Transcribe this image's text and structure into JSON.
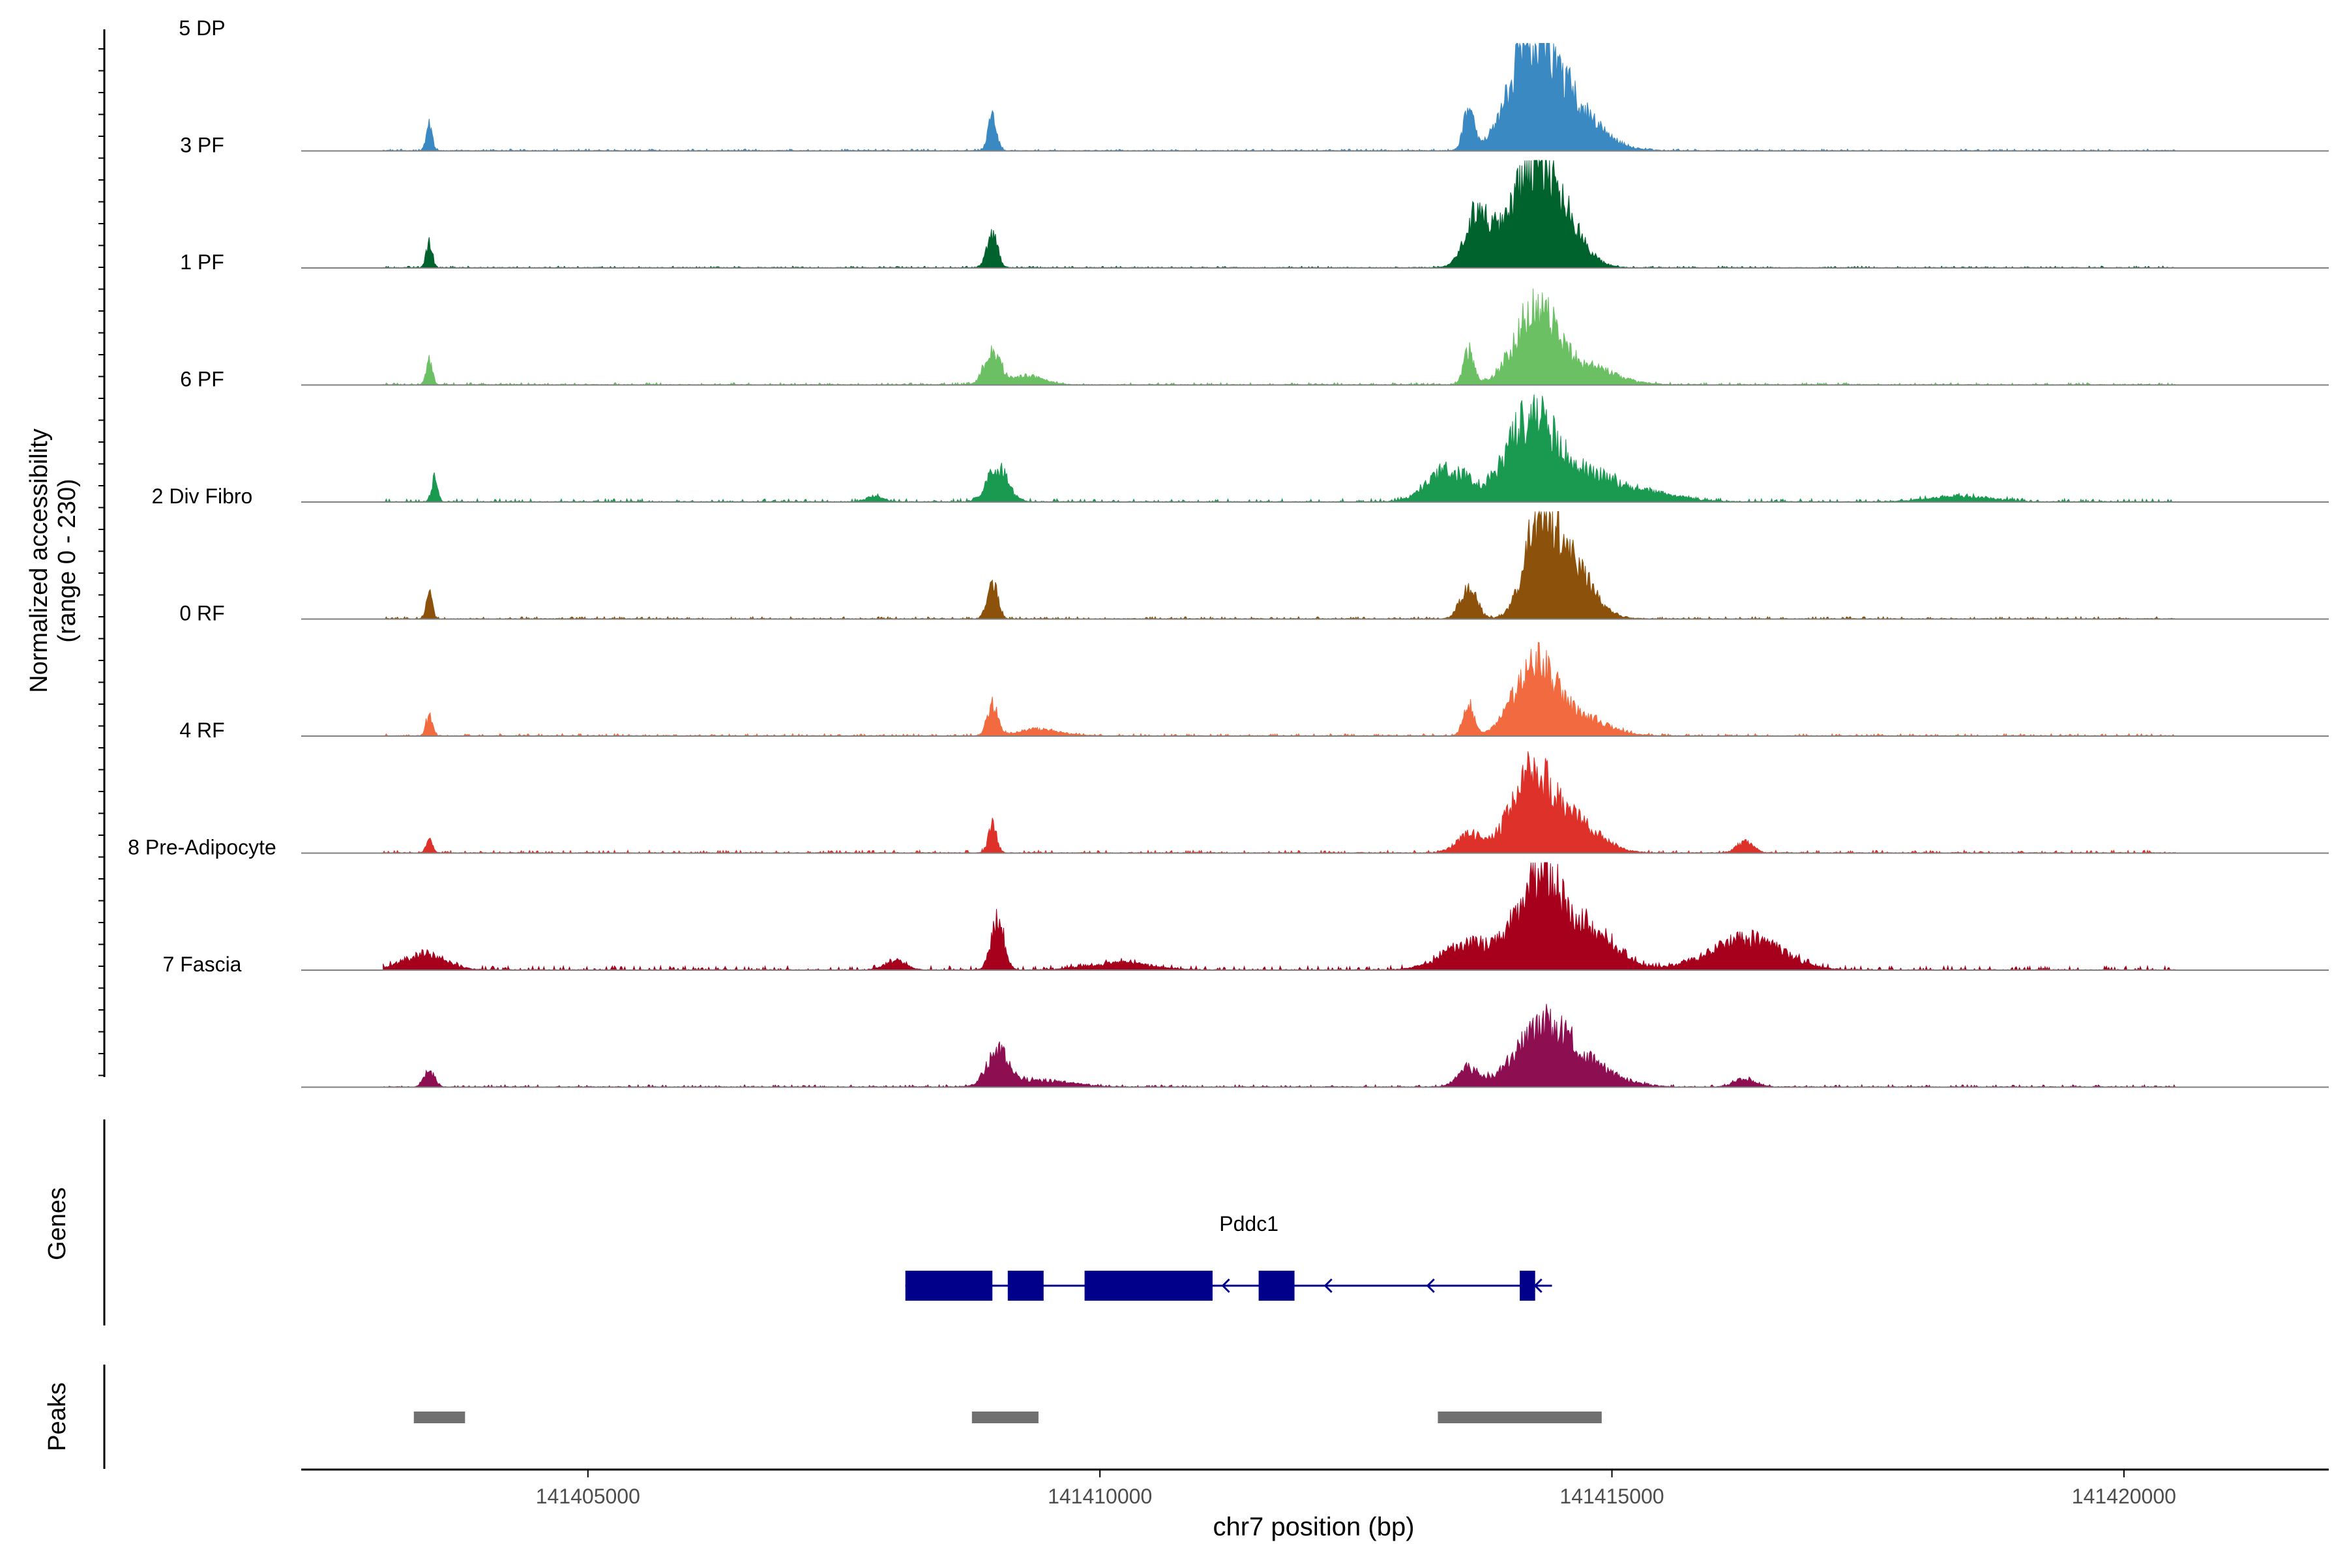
{
  "chart_data": {
    "type": "area",
    "ylabel": "Normalized accessibility",
    "ylabel_range": "(range 0 - 230)",
    "ylim": [
      0,
      230
    ],
    "xlabel": "chr7 position (bp)",
    "xlim": [
      141402200,
      141422000
    ],
    "x_ticks": [
      141405000,
      141410000,
      141415000,
      141420000
    ],
    "x_tick_labels": [
      "141405000",
      "141410000",
      "141415000",
      "141420000"
    ],
    "tracks": [
      {
        "name": "5 DP",
        "color": "#3a89c2",
        "peaks": [
          [
            141403450,
            30,
            55
          ],
          [
            141408950,
            40,
            75
          ],
          [
            141413600,
            50,
            90
          ],
          [
            141414200,
            200,
            190
          ],
          [
            141414500,
            300,
            120
          ]
        ],
        "noise": 4
      },
      {
        "name": "3 PF",
        "color": "#00622d",
        "peaks": [
          [
            141403450,
            30,
            55
          ],
          [
            141408950,
            50,
            80
          ],
          [
            141413700,
            120,
            130
          ],
          [
            141414200,
            200,
            190
          ],
          [
            141414500,
            200,
            100
          ]
        ],
        "noise": 4
      },
      {
        "name": "1 PF",
        "color": "#6ac063",
        "peaks": [
          [
            141403450,
            30,
            55
          ],
          [
            141408950,
            75,
            80
          ],
          [
            141409300,
            150,
            20
          ],
          [
            141413600,
            50,
            80
          ],
          [
            141414250,
            200,
            160
          ],
          [
            141414700,
            300,
            40
          ]
        ],
        "noise": 5
      },
      {
        "name": "6 PF",
        "color": "#1a9951",
        "peaks": [
          [
            141403500,
            30,
            50
          ],
          [
            141407800,
            80,
            12
          ],
          [
            141409000,
            100,
            75
          ],
          [
            141413400,
            200,
            70
          ],
          [
            141414200,
            230,
            170
          ],
          [
            141414700,
            350,
            60
          ],
          [
            141415400,
            300,
            15
          ],
          [
            141418400,
            300,
            12
          ]
        ],
        "noise": 7
      },
      {
        "name": "2 Div Fibro",
        "color": "#8c510a",
        "peaks": [
          [
            141403450,
            30,
            55
          ],
          [
            141408950,
            50,
            80
          ],
          [
            141413600,
            80,
            70
          ],
          [
            141414300,
            150,
            200
          ],
          [
            141414600,
            200,
            120
          ]
        ],
        "noise": 5
      },
      {
        "name": "0 RF",
        "color": "#f26a3f",
        "peaks": [
          [
            141403450,
            30,
            45
          ],
          [
            141408950,
            50,
            70
          ],
          [
            141409400,
            200,
            15
          ],
          [
            141413600,
            50,
            70
          ],
          [
            141414250,
            200,
            160
          ],
          [
            141414700,
            250,
            40
          ]
        ],
        "noise": 5
      },
      {
        "name": "4 RF",
        "color": "#dd3129",
        "peaks": [
          [
            141403450,
            30,
            30
          ],
          [
            141408950,
            40,
            60
          ],
          [
            141413600,
            120,
            40
          ],
          [
            141414200,
            200,
            160
          ],
          [
            141414600,
            250,
            70
          ],
          [
            141416300,
            80,
            25
          ]
        ],
        "noise": 6
      },
      {
        "name": "8 Pre-Adipocyte",
        "color": "#a6001d",
        "peaks": [
          [
            141403400,
            200,
            35
          ],
          [
            141408000,
            100,
            20
          ],
          [
            141409000,
            60,
            120
          ],
          [
            141410200,
            300,
            15
          ],
          [
            141413600,
            250,
            60
          ],
          [
            141414300,
            220,
            200
          ],
          [
            141414800,
            250,
            80
          ],
          [
            141416400,
            300,
            60
          ],
          [
            141416000,
            300,
            20
          ]
        ],
        "noise": 9
      },
      {
        "name": "7 Fascia",
        "color": "#8d0f52",
        "peaks": [
          [
            141403450,
            50,
            35
          ],
          [
            141409000,
            100,
            75
          ],
          [
            141409400,
            300,
            15
          ],
          [
            141413600,
            100,
            40
          ],
          [
            141414300,
            250,
            120
          ],
          [
            141414700,
            300,
            50
          ],
          [
            141416300,
            100,
            18
          ]
        ],
        "noise": 5
      }
    ],
    "genes": [
      {
        "name": "Pddc1",
        "start": 141408100,
        "end": 141414300,
        "strand": "-",
        "color": "#00008b",
        "exons": [
          [
            141408100,
            141408950
          ],
          [
            141409100,
            141409450
          ],
          [
            141409850,
            141411100
          ],
          [
            141411550,
            141411900
          ],
          [
            141414100,
            141414250
          ]
        ]
      }
    ],
    "genes_label": "Genes",
    "peaks_label": "Peaks",
    "peaks": [
      [
        141403300,
        141403800
      ],
      [
        141408750,
        141409400
      ],
      [
        141413300,
        141414900
      ]
    ],
    "peak_color": "#707070"
  }
}
